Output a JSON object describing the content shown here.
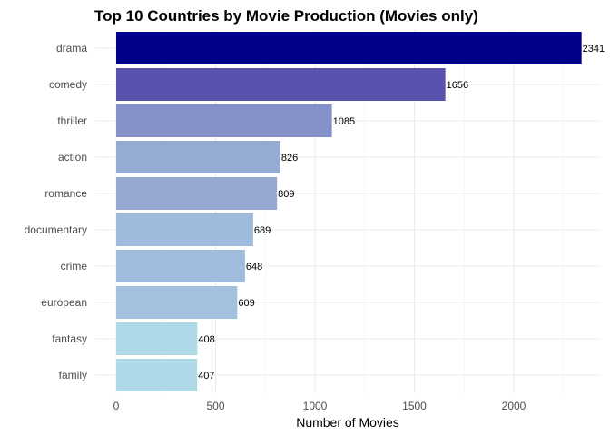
{
  "chart_data": {
    "type": "bar",
    "orientation": "horizontal",
    "title": "Top 10 Countries by Movie Production (Movies only)",
    "xlabel": "Number of Movies",
    "ylabel": "",
    "categories": [
      "drama",
      "comedy",
      "thriller",
      "action",
      "romance",
      "documentary",
      "crime",
      "european",
      "fantasy",
      "family"
    ],
    "values": [
      2341,
      1656,
      1085,
      826,
      809,
      689,
      648,
      609,
      408,
      407
    ],
    "colors": [
      "#00008b",
      "#5a53ad",
      "#8590c8",
      "#96abd4",
      "#95a9d3",
      "#9dbbdb",
      "#9fbcdc",
      "#a2c1de",
      "#aed9e6",
      "#aed9e6"
    ],
    "xlim": [
      0,
      2341
    ],
    "xticks": [
      0,
      500,
      1000,
      1500,
      2000
    ],
    "grid": true,
    "legend": "none"
  }
}
